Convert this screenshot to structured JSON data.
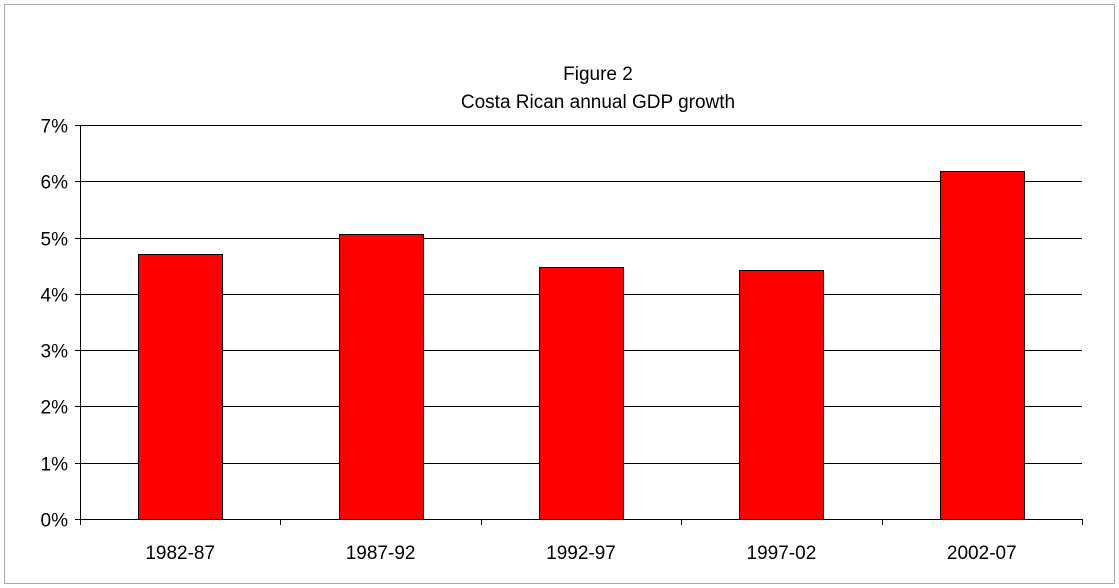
{
  "chart_data": {
    "type": "bar",
    "title": "Figure 2",
    "subtitle": "Costa Rican annual GDP growth",
    "categories": [
      "1982-87",
      "1987-92",
      "1992-97",
      "1997-02",
      "2002-07"
    ],
    "values": [
      4.7,
      5.07,
      4.47,
      4.42,
      6.18
    ],
    "ylim": [
      0,
      7
    ],
    "yticks": [
      "0%",
      "1%",
      "2%",
      "3%",
      "4%",
      "5%",
      "6%",
      "7%"
    ],
    "grid": true,
    "legend": "none",
    "bar_color": "#ff0000",
    "bar_border_color": "#000000"
  }
}
